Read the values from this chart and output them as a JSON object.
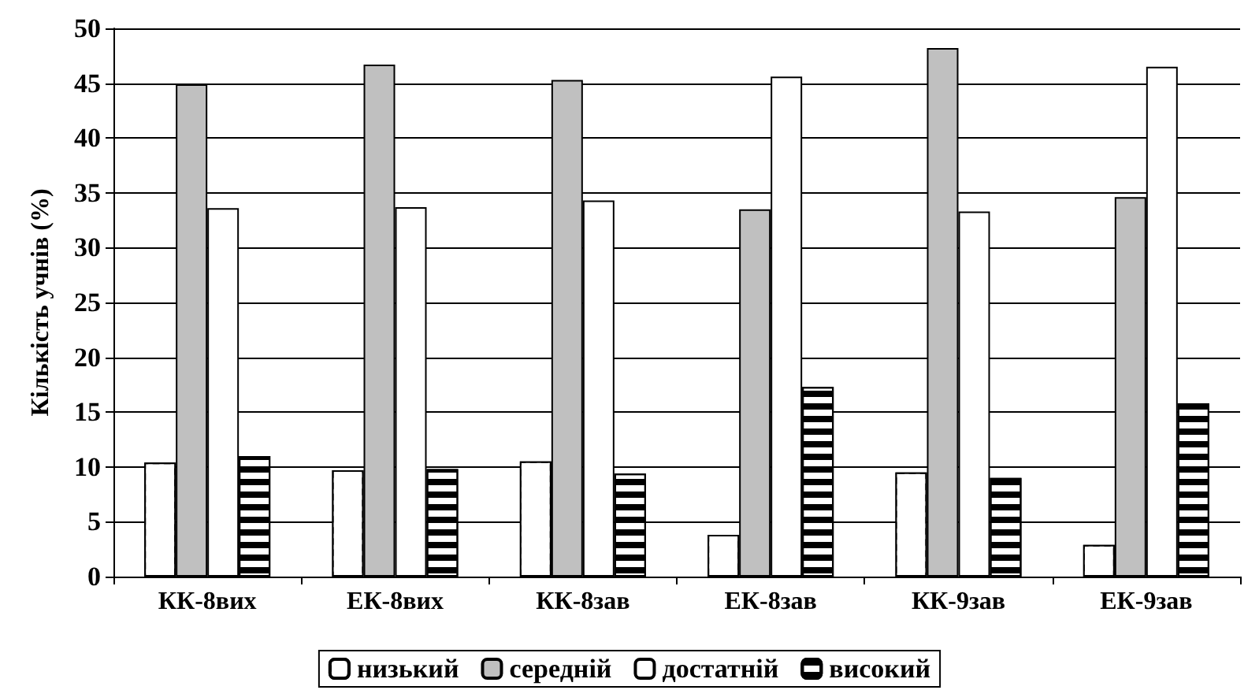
{
  "chart_data": {
    "type": "bar",
    "ylabel": "Кількість учнів (%)",
    "categories": [
      "КК-8вих",
      "ЕК-8вих",
      "КК-8зав",
      "ЕК-8зав",
      "КК-9зав",
      "ЕК-9зав"
    ],
    "series": [
      {
        "name": "низький",
        "color": "#ffffff",
        "values": [
          10.4,
          9.7,
          10.5,
          3.8,
          9.5,
          2.9
        ]
      },
      {
        "name": "середній",
        "color": "#c0c0c0",
        "values": [
          44.9,
          46.7,
          45.3,
          33.5,
          48.2,
          34.6
        ]
      },
      {
        "name": "достатній",
        "color": "#ffffff",
        "values": [
          33.6,
          33.7,
          34.3,
          45.6,
          33.3,
          46.5
        ]
      },
      {
        "name": "високий",
        "color": "#000000",
        "values": [
          11.0,
          9.8,
          9.4,
          17.3,
          9.0,
          15.8
        ]
      }
    ],
    "ylim": [
      0,
      50
    ],
    "yticks": [
      0,
      5,
      10,
      15,
      20,
      25,
      30,
      35,
      40,
      45,
      50
    ],
    "grid": "y",
    "legend": "bottom"
  }
}
